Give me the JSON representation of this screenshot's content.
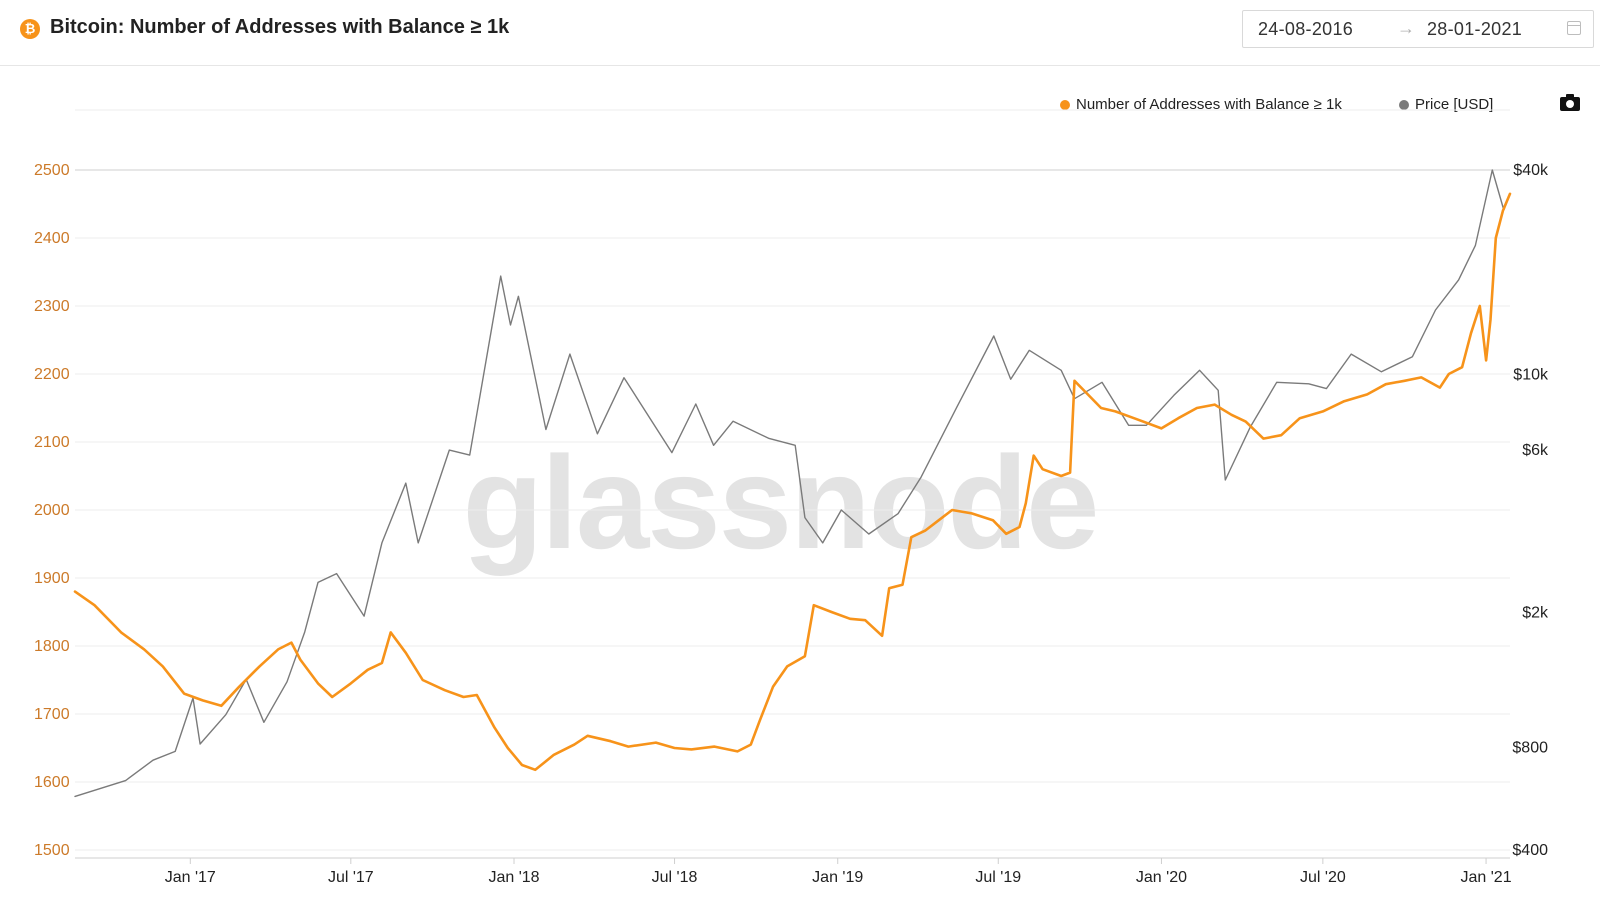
{
  "header": {
    "logo_letter": "₿",
    "title": "Bitcoin: Number of Addresses with Balance ≥ 1k",
    "date_start": "24-08-2016",
    "date_arrow": "→",
    "date_end": "28-01-2021"
  },
  "watermark": "glassnode",
  "colors": {
    "addresses_series": "#f7931a",
    "price_series": "#7a7a7a",
    "left_axis_text": "#cc7a29"
  },
  "chart_data": {
    "type": "line",
    "title": "Bitcoin: Number of Addresses with Balance ≥ 1k",
    "x_range": [
      "2016-08-24",
      "2021-01-28"
    ],
    "x_ticks": [
      {
        "date": "2017-01-01",
        "label": "Jan '17"
      },
      {
        "date": "2017-07-01",
        "label": "Jul '17"
      },
      {
        "date": "2018-01-01",
        "label": "Jan '18"
      },
      {
        "date": "2018-07-01",
        "label": "Jul '18"
      },
      {
        "date": "2019-01-01",
        "label": "Jan '19"
      },
      {
        "date": "2019-07-01",
        "label": "Jul '19"
      },
      {
        "date": "2020-01-01",
        "label": "Jan '20"
      },
      {
        "date": "2020-07-01",
        "label": "Jul '20"
      },
      {
        "date": "2021-01-01",
        "label": "Jan '21"
      }
    ],
    "y_left": {
      "range": [
        1500,
        2500
      ],
      "ticks": [
        1500,
        1600,
        1700,
        1800,
        1900,
        2000,
        2100,
        2200,
        2300,
        2400,
        2500
      ]
    },
    "y_right": {
      "scale": "log",
      "range": [
        400,
        40000
      ],
      "ticks": [
        {
          "value": 400,
          "label": "$400"
        },
        {
          "value": 800,
          "label": "$800"
        },
        {
          "value": 2000,
          "label": "$2k"
        },
        {
          "value": 6000,
          "label": "$6k"
        },
        {
          "value": 10000,
          "label": "$10k"
        },
        {
          "value": 40000,
          "label": "$40k"
        }
      ]
    },
    "legend_position": "top-right",
    "grid": true,
    "series": [
      {
        "name": "Number of Addresses with Balance ≥ 1k",
        "axis": "left",
        "color": "#f7931a",
        "points": [
          [
            "2016-08-24",
            1880
          ],
          [
            "2016-09-15",
            1860
          ],
          [
            "2016-10-15",
            1820
          ],
          [
            "2016-11-10",
            1795
          ],
          [
            "2016-12-01",
            1770
          ],
          [
            "2016-12-25",
            1730
          ],
          [
            "2017-01-15",
            1720
          ],
          [
            "2017-02-05",
            1712
          ],
          [
            "2017-02-25",
            1740
          ],
          [
            "2017-03-20",
            1770
          ],
          [
            "2017-04-10",
            1795
          ],
          [
            "2017-04-25",
            1805
          ],
          [
            "2017-05-05",
            1780
          ],
          [
            "2017-05-25",
            1745
          ],
          [
            "2017-06-10",
            1725
          ],
          [
            "2017-07-01",
            1745
          ],
          [
            "2017-07-20",
            1765
          ],
          [
            "2017-08-05",
            1775
          ],
          [
            "2017-08-15",
            1820
          ],
          [
            "2017-09-01",
            1790
          ],
          [
            "2017-09-20",
            1750
          ],
          [
            "2017-10-15",
            1735
          ],
          [
            "2017-11-05",
            1725
          ],
          [
            "2017-11-20",
            1728
          ],
          [
            "2017-12-10",
            1680
          ],
          [
            "2017-12-25",
            1650
          ],
          [
            "2018-01-10",
            1625
          ],
          [
            "2018-01-25",
            1618
          ],
          [
            "2018-02-15",
            1640
          ],
          [
            "2018-03-10",
            1655
          ],
          [
            "2018-03-25",
            1668
          ],
          [
            "2018-04-20",
            1660
          ],
          [
            "2018-05-10",
            1652
          ],
          [
            "2018-06-10",
            1658
          ],
          [
            "2018-07-01",
            1650
          ],
          [
            "2018-07-20",
            1648
          ],
          [
            "2018-08-15",
            1652
          ],
          [
            "2018-09-10",
            1645
          ],
          [
            "2018-09-25",
            1655
          ],
          [
            "2018-10-05",
            1690
          ],
          [
            "2018-10-20",
            1740
          ],
          [
            "2018-11-05",
            1770
          ],
          [
            "2018-11-25",
            1785
          ],
          [
            "2018-12-05",
            1860
          ],
          [
            "2018-12-25",
            1850
          ],
          [
            "2019-01-15",
            1840
          ],
          [
            "2019-02-01",
            1838
          ],
          [
            "2019-02-20",
            1815
          ],
          [
            "2019-02-28",
            1885
          ],
          [
            "2019-03-15",
            1890
          ],
          [
            "2019-03-25",
            1960
          ],
          [
            "2019-04-10",
            1970
          ],
          [
            "2019-04-25",
            1985
          ],
          [
            "2019-05-10",
            2000
          ],
          [
            "2019-06-01",
            1995
          ],
          [
            "2019-06-25",
            1985
          ],
          [
            "2019-07-10",
            1965
          ],
          [
            "2019-07-25",
            1975
          ],
          [
            "2019-08-01",
            2010
          ],
          [
            "2019-08-10",
            2080
          ],
          [
            "2019-08-20",
            2060
          ],
          [
            "2019-09-10",
            2050
          ],
          [
            "2019-09-20",
            2055
          ],
          [
            "2019-09-25",
            2190
          ],
          [
            "2019-10-10",
            2170
          ],
          [
            "2019-10-25",
            2150
          ],
          [
            "2019-11-10",
            2145
          ],
          [
            "2019-12-01",
            2135
          ],
          [
            "2020-01-01",
            2120
          ],
          [
            "2020-01-20",
            2135
          ],
          [
            "2020-02-10",
            2150
          ],
          [
            "2020-03-01",
            2155
          ],
          [
            "2020-03-20",
            2140
          ],
          [
            "2020-04-05",
            2130
          ],
          [
            "2020-04-25",
            2105
          ],
          [
            "2020-05-15",
            2110
          ],
          [
            "2020-06-05",
            2135
          ],
          [
            "2020-07-01",
            2145
          ],
          [
            "2020-07-25",
            2160
          ],
          [
            "2020-08-20",
            2170
          ],
          [
            "2020-09-10",
            2185
          ],
          [
            "2020-10-01",
            2190
          ],
          [
            "2020-10-20",
            2195
          ],
          [
            "2020-11-10",
            2180
          ],
          [
            "2020-11-20",
            2200
          ],
          [
            "2020-12-05",
            2210
          ],
          [
            "2020-12-15",
            2260
          ],
          [
            "2020-12-25",
            2300
          ],
          [
            "2021-01-01",
            2220
          ],
          [
            "2021-01-06",
            2280
          ],
          [
            "2021-01-12",
            2400
          ],
          [
            "2021-01-20",
            2440
          ],
          [
            "2021-01-28",
            2465
          ]
        ]
      },
      {
        "name": "Price [USD]",
        "axis": "right",
        "color": "#7a7a7a",
        "points": [
          [
            "2016-08-24",
            575
          ],
          [
            "2016-09-20",
            605
          ],
          [
            "2016-10-20",
            640
          ],
          [
            "2016-11-20",
            735
          ],
          [
            "2016-12-15",
            780
          ],
          [
            "2017-01-04",
            1120
          ],
          [
            "2017-01-12",
            820
          ],
          [
            "2017-02-10",
            1000
          ],
          [
            "2017-03-05",
            1270
          ],
          [
            "2017-03-25",
            950
          ],
          [
            "2017-04-20",
            1250
          ],
          [
            "2017-05-10",
            1750
          ],
          [
            "2017-05-25",
            2450
          ],
          [
            "2017-06-15",
            2600
          ],
          [
            "2017-07-16",
            1950
          ],
          [
            "2017-08-05",
            3200
          ],
          [
            "2017-09-01",
            4800
          ],
          [
            "2017-09-15",
            3200
          ],
          [
            "2017-10-20",
            6000
          ],
          [
            "2017-11-12",
            5800
          ],
          [
            "2017-12-17",
            19500
          ],
          [
            "2017-12-28",
            14000
          ],
          [
            "2018-01-06",
            17000
          ],
          [
            "2018-02-06",
            6900
          ],
          [
            "2018-03-05",
            11500
          ],
          [
            "2018-04-05",
            6700
          ],
          [
            "2018-05-05",
            9800
          ],
          [
            "2018-06-28",
            5900
          ],
          [
            "2018-07-25",
            8200
          ],
          [
            "2018-08-14",
            6200
          ],
          [
            "2018-09-05",
            7300
          ],
          [
            "2018-10-15",
            6500
          ],
          [
            "2018-11-14",
            6200
          ],
          [
            "2018-11-25",
            3800
          ],
          [
            "2018-12-15",
            3200
          ],
          [
            "2019-01-05",
            4000
          ],
          [
            "2019-02-05",
            3400
          ],
          [
            "2019-03-10",
            3900
          ],
          [
            "2019-04-05",
            5000
          ],
          [
            "2019-05-15",
            8000
          ],
          [
            "2019-06-26",
            13000
          ],
          [
            "2019-07-15",
            9700
          ],
          [
            "2019-08-05",
            11800
          ],
          [
            "2019-09-10",
            10300
          ],
          [
            "2019-09-25",
            8500
          ],
          [
            "2019-10-26",
            9500
          ],
          [
            "2019-11-25",
            7100
          ],
          [
            "2019-12-15",
            7100
          ],
          [
            "2020-01-15",
            8700
          ],
          [
            "2020-02-13",
            10300
          ],
          [
            "2020-03-05",
            9000
          ],
          [
            "2020-03-13",
            4900
          ],
          [
            "2020-04-10",
            7000
          ],
          [
            "2020-05-10",
            9500
          ],
          [
            "2020-06-15",
            9400
          ],
          [
            "2020-07-05",
            9100
          ],
          [
            "2020-08-02",
            11500
          ],
          [
            "2020-09-05",
            10200
          ],
          [
            "2020-10-10",
            11300
          ],
          [
            "2020-11-05",
            15500
          ],
          [
            "2020-12-01",
            19000
          ],
          [
            "2020-12-20",
            24000
          ],
          [
            "2021-01-08",
            40000
          ],
          [
            "2021-01-21",
            30500
          ],
          [
            "2021-01-28",
            34000
          ]
        ]
      }
    ]
  }
}
